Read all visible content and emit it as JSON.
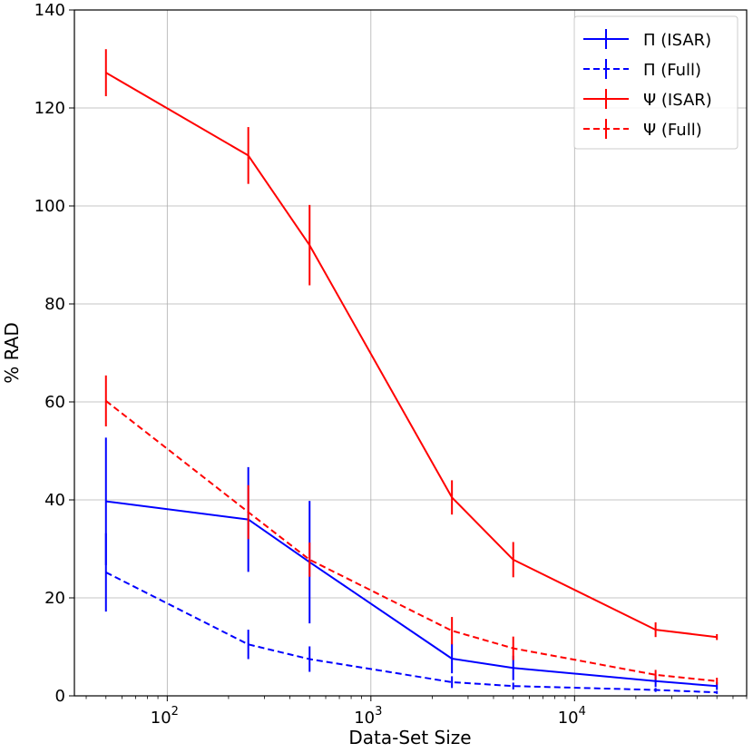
{
  "chart_data": {
    "type": "line",
    "title": "",
    "xlabel": "Data-Set Size",
    "ylabel": "% RAD",
    "xscale": "log",
    "xlim": [
      35,
      70000
    ],
    "ylim": [
      0,
      140
    ],
    "grid": true,
    "legend_position": "top-right",
    "x_ticks": [
      {
        "value": 100,
        "mantissa": "10",
        "exp": "2"
      },
      {
        "value": 1000,
        "mantissa": "10",
        "exp": "3"
      },
      {
        "value": 10000,
        "mantissa": "10",
        "exp": "4"
      }
    ],
    "y_ticks": [
      "0",
      "20",
      "40",
      "60",
      "80",
      "100",
      "120",
      "140"
    ],
    "x": [
      50,
      250,
      500,
      2500,
      5000,
      25000,
      50000
    ],
    "series": [
      {
        "name": "Π (ISAR)",
        "color": "#0000ff",
        "style": "solid",
        "values": [
          39.7,
          36.0,
          27.3,
          7.6,
          5.7,
          3.0,
          2.0
        ],
        "errors": [
          13.0,
          10.7,
          12.5,
          3.0,
          2.5,
          1.2,
          0.8
        ]
      },
      {
        "name": "Π (Full)",
        "color": "#0000ff",
        "style": "dashed",
        "values": [
          25.2,
          10.5,
          7.5,
          2.8,
          2.0,
          1.2,
          0.7
        ],
        "errors": [
          8.0,
          3.0,
          2.6,
          1.2,
          0.7,
          0.4,
          0.3
        ]
      },
      {
        "name": "Ψ (ISAR)",
        "color": "#ff0000",
        "style": "solid",
        "values": [
          127.2,
          110.3,
          92.0,
          40.5,
          27.8,
          13.5,
          12.0
        ],
        "errors": [
          4.8,
          5.8,
          8.2,
          3.5,
          3.6,
          1.5,
          0.6
        ]
      },
      {
        "name": "Ψ (Full)",
        "color": "#ff0000",
        "style": "dashed",
        "values": [
          60.2,
          37.5,
          27.8,
          13.3,
          9.7,
          4.3,
          3.0
        ],
        "errors": [
          5.2,
          5.5,
          3.5,
          2.8,
          2.4,
          1.0,
          0.7
        ]
      }
    ]
  }
}
